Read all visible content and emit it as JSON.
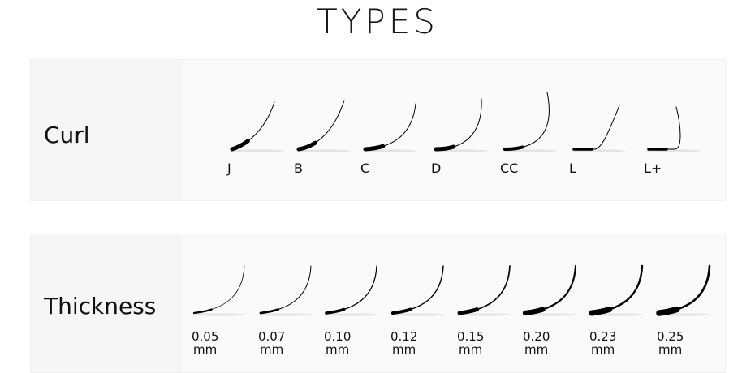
{
  "title": "TYPES",
  "curl": {
    "label": "Curl",
    "items": [
      {
        "label": "J"
      },
      {
        "label": "B"
      },
      {
        "label": "C"
      },
      {
        "label": "D"
      },
      {
        "label": "CC"
      },
      {
        "label": "L"
      },
      {
        "label": "L+"
      }
    ]
  },
  "thickness": {
    "label": "Thickness",
    "items": [
      {
        "value": "0.05",
        "unit": "mm",
        "level": 0.05
      },
      {
        "value": "0.07",
        "unit": "mm",
        "level": 0.07
      },
      {
        "value": "0.10",
        "unit": "mm",
        "level": 0.1
      },
      {
        "value": "0.12",
        "unit": "mm",
        "level": 0.12
      },
      {
        "value": "0.15",
        "unit": "mm",
        "level": 0.15
      },
      {
        "value": "0.20",
        "unit": "mm",
        "level": 0.2
      },
      {
        "value": "0.23",
        "unit": "mm",
        "level": 0.23
      },
      {
        "value": "0.25",
        "unit": "mm",
        "level": 0.25
      }
    ]
  },
  "colors": {
    "lash": "#000000",
    "panel": "#f6f6f6",
    "shadow": "#d8d8d8"
  }
}
